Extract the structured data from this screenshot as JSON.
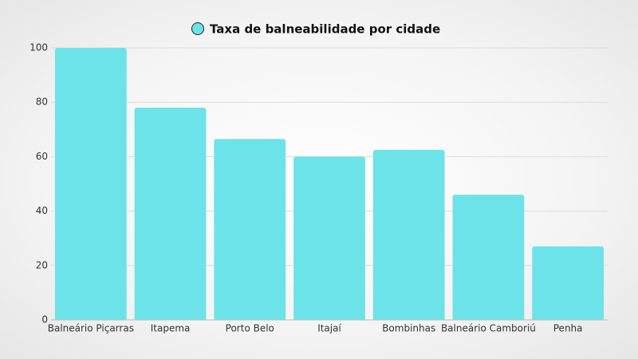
{
  "chart_data": {
    "type": "bar",
    "categories": [
      "Balneário Piçarras",
      "Itapema",
      "Porto Belo",
      "Itajaí",
      "Bombinhas",
      "Balneário Camboriú",
      "Penha"
    ],
    "series": [
      {
        "name": "Taxa de balneabilidade por cidade",
        "color": "#6ce3e8",
        "values": [
          100,
          78,
          66.5,
          60,
          62.5,
          46,
          27
        ]
      }
    ],
    "ylim": [
      0,
      100
    ],
    "yticks": [
      0,
      20,
      40,
      60,
      80,
      100
    ],
    "grid": true,
    "legend": "top"
  }
}
